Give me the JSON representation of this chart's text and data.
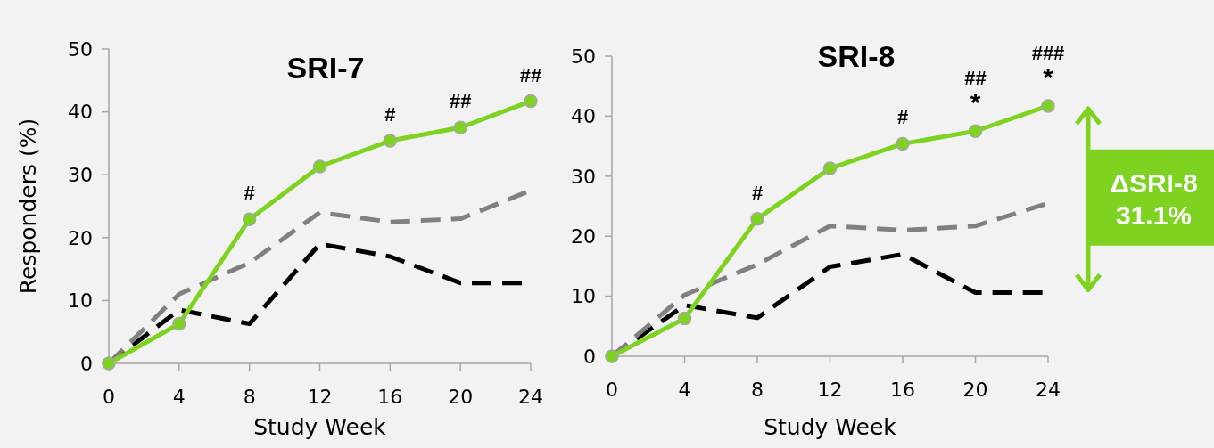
{
  "chart_data": [
    {
      "type": "line",
      "title": "SRI-7",
      "xlabel": "Study Week",
      "ylabel": "Responders (%)",
      "x": [
        0,
        4,
        8,
        12,
        16,
        20,
        24
      ],
      "xlim": [
        0,
        24
      ],
      "xticks": [
        0,
        4,
        8,
        12,
        16,
        20,
        24
      ],
      "ylim": [
        0,
        50
      ],
      "yticks": [
        0,
        10,
        20,
        30,
        40,
        50
      ],
      "grid": false,
      "series": [
        {
          "color": "#7ed321",
          "marker": "circle",
          "line_style": "solid",
          "values": [
            0,
            6.3,
            22.9,
            31.3,
            35.4,
            37.5,
            41.7
          ]
        },
        {
          "color": "#808080",
          "marker": "none",
          "line_style": "dashed",
          "values": [
            0,
            11,
            16,
            24,
            22.5,
            23,
            27.5
          ]
        },
        {
          "color": "#000000",
          "marker": "none",
          "line_style": "dashed",
          "values": [
            0,
            8.5,
            6.3,
            19,
            17,
            12.8,
            12.8
          ]
        }
      ],
      "annotations": [
        {
          "text": "#",
          "x": 8,
          "y": 22.9
        },
        {
          "text": "#",
          "x": 16,
          "y": 35.4
        },
        {
          "text": "##",
          "x": 20,
          "y": 37.5
        },
        {
          "text": "##",
          "x": 24,
          "y": 41.7
        }
      ]
    },
    {
      "type": "line",
      "title": "SRI-8",
      "xlabel": "Study Week",
      "x": [
        0,
        4,
        8,
        12,
        16,
        20,
        24
      ],
      "xlim": [
        0,
        24
      ],
      "xticks": [
        0,
        4,
        8,
        12,
        16,
        20,
        24
      ],
      "ylim": [
        0,
        50
      ],
      "yticks": [
        0,
        10,
        20,
        30,
        40,
        50
      ],
      "grid": false,
      "series": [
        {
          "color": "#7ed321",
          "marker": "circle",
          "line_style": "solid",
          "values": [
            0,
            6.3,
            22.9,
            31.3,
            35.4,
            37.5,
            41.7
          ]
        },
        {
          "color": "#808080",
          "marker": "none",
          "line_style": "dashed",
          "values": [
            0,
            10.2,
            15.3,
            21.7,
            21,
            21.7,
            25.5
          ]
        },
        {
          "color": "#000000",
          "marker": "none",
          "line_style": "dashed",
          "values": [
            0,
            8.5,
            6.4,
            14.9,
            17,
            10.6,
            10.6
          ]
        }
      ],
      "annotations": [
        {
          "text": "#",
          "x": 8,
          "y": 22.9
        },
        {
          "text": "#",
          "x": 16,
          "y": 35.4
        },
        {
          "text": "*",
          "x": 20,
          "y": 37.5
        },
        {
          "text": "##",
          "x": 20,
          "y": 37.5
        },
        {
          "text": "*",
          "x": 24,
          "y": 41.7
        },
        {
          "text": "###",
          "x": 24,
          "y": 41.7
        },
        "ΔSRI-8 31.1%"
      ]
    }
  ]
}
